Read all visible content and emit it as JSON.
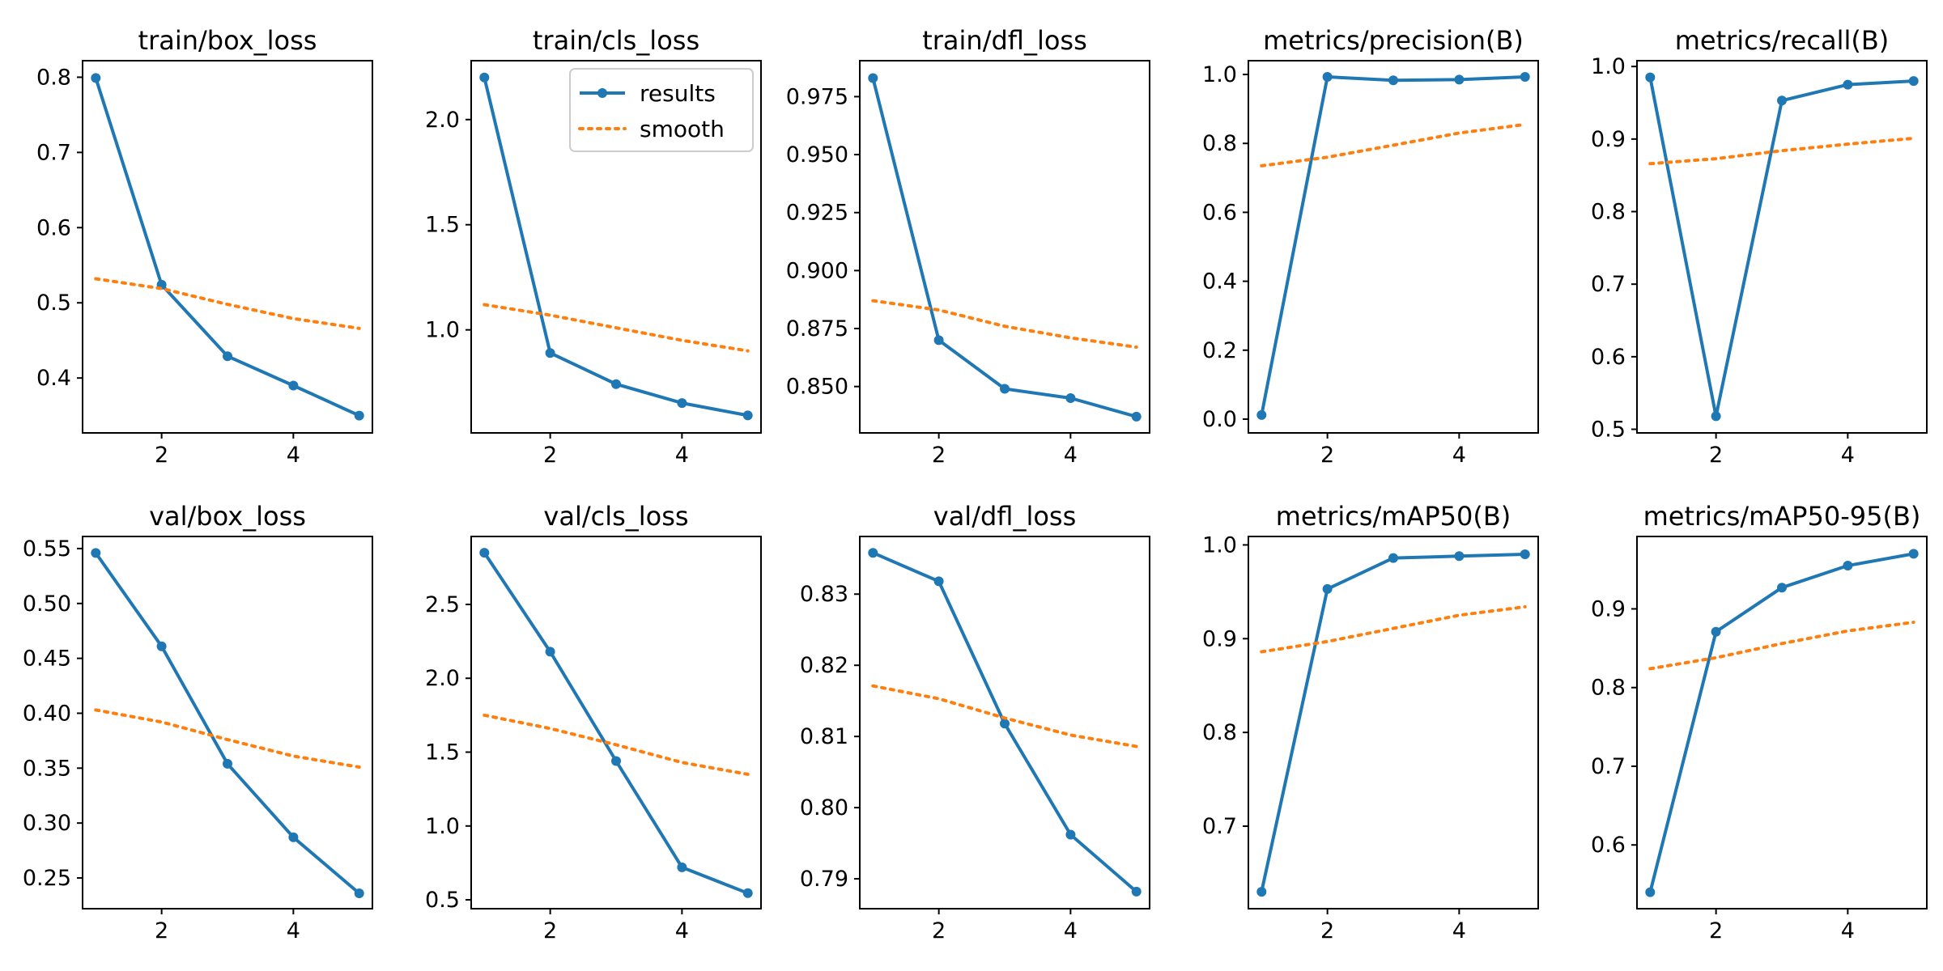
{
  "figure": {
    "background": "#ffffff",
    "colors": {
      "results": "#1f77b4",
      "smooth": "#ff7f0e"
    }
  },
  "chart_data": [
    {
      "type": "line",
      "title": "train/box_loss",
      "x": [
        1,
        2,
        3,
        4,
        5
      ],
      "xticks": [
        2,
        4
      ],
      "xlim": [
        0.8,
        5.2
      ],
      "ylim": [
        0.327,
        0.822
      ],
      "yticks": [
        0.4,
        0.5,
        0.6,
        0.7,
        0.8
      ],
      "ytick_labels": [
        "0.4",
        "0.5",
        "0.6",
        "0.7",
        "0.8"
      ],
      "series": [
        {
          "name": "results",
          "style": "solid-with-markers",
          "values": [
            0.799,
            0.524,
            0.429,
            0.39,
            0.35
          ]
        },
        {
          "name": "smooth",
          "style": "dotted",
          "values": [
            0.532,
            0.519,
            0.498,
            0.479,
            0.466
          ]
        }
      ],
      "legend": null
    },
    {
      "type": "line",
      "title": "train/cls_loss",
      "x": [
        1,
        2,
        3,
        4,
        5
      ],
      "xticks": [
        2,
        4
      ],
      "xlim": [
        0.8,
        5.2
      ],
      "ylim": [
        0.51,
        2.28
      ],
      "yticks": [
        1.0,
        1.5,
        2.0
      ],
      "ytick_labels": [
        "1.0",
        "1.5",
        "2.0"
      ],
      "series": [
        {
          "name": "results",
          "style": "solid-with-markers",
          "values": [
            2.2,
            0.89,
            0.742,
            0.652,
            0.593
          ]
        },
        {
          "name": "smooth",
          "style": "dotted",
          "values": [
            1.12,
            1.07,
            1.01,
            0.95,
            0.9
          ]
        }
      ],
      "legend": {
        "position": "upper right",
        "entries": [
          "results",
          "smooth"
        ]
      }
    },
    {
      "type": "line",
      "title": "train/dfl_loss",
      "x": [
        1,
        2,
        3,
        4,
        5
      ],
      "xticks": [
        2,
        4
      ],
      "xlim": [
        0.8,
        5.2
      ],
      "ylim": [
        0.83,
        0.9905
      ],
      "yticks": [
        0.85,
        0.875,
        0.9,
        0.925,
        0.95,
        0.975
      ],
      "ytick_labels": [
        "0.850",
        "0.875",
        "0.900",
        "0.925",
        "0.950",
        "0.975"
      ],
      "series": [
        {
          "name": "results",
          "style": "solid-with-markers",
          "values": [
            0.983,
            0.87,
            0.849,
            0.845,
            0.837
          ]
        },
        {
          "name": "smooth",
          "style": "dotted",
          "values": [
            0.887,
            0.883,
            0.876,
            0.871,
            0.867
          ]
        }
      ],
      "legend": null
    },
    {
      "type": "line",
      "title": "metrics/precision(B)",
      "x": [
        1,
        2,
        3,
        4,
        5
      ],
      "xticks": [
        2,
        4
      ],
      "xlim": [
        0.8,
        5.2
      ],
      "ylim": [
        -0.04,
        1.04
      ],
      "yticks": [
        0.0,
        0.2,
        0.4,
        0.6,
        0.8,
        1.0
      ],
      "ytick_labels": [
        "0.0",
        "0.2",
        "0.4",
        "0.6",
        "0.8",
        "1.0"
      ],
      "series": [
        {
          "name": "results",
          "style": "solid-with-markers",
          "values": [
            0.012,
            0.993,
            0.983,
            0.985,
            0.993
          ]
        },
        {
          "name": "smooth",
          "style": "dotted",
          "values": [
            0.735,
            0.76,
            0.795,
            0.83,
            0.855
          ]
        }
      ],
      "legend": null
    },
    {
      "type": "line",
      "title": "metrics/recall(B)",
      "x": [
        1,
        2,
        3,
        4,
        5
      ],
      "xticks": [
        2,
        4
      ],
      "xlim": [
        0.8,
        5.2
      ],
      "ylim": [
        0.495,
        1.008
      ],
      "yticks": [
        0.5,
        0.6,
        0.7,
        0.8,
        0.9,
        1.0
      ],
      "ytick_labels": [
        "0.5",
        "0.6",
        "0.7",
        "0.8",
        "0.9",
        "1.0"
      ],
      "series": [
        {
          "name": "results",
          "style": "solid-with-markers",
          "values": [
            0.985,
            0.518,
            0.953,
            0.975,
            0.98
          ]
        },
        {
          "name": "smooth",
          "style": "dotted",
          "values": [
            0.866,
            0.873,
            0.884,
            0.893,
            0.901
          ]
        }
      ],
      "legend": null
    },
    {
      "type": "line",
      "title": "val/box_loss",
      "x": [
        1,
        2,
        3,
        4,
        5
      ],
      "xticks": [
        2,
        4
      ],
      "xlim": [
        0.8,
        5.2
      ],
      "ylim": [
        0.222,
        0.561
      ],
      "yticks": [
        0.25,
        0.3,
        0.35,
        0.4,
        0.45,
        0.5,
        0.55
      ],
      "ytick_labels": [
        "0.25",
        "0.30",
        "0.35",
        "0.40",
        "0.45",
        "0.50",
        "0.55"
      ],
      "series": [
        {
          "name": "results",
          "style": "solid-with-markers",
          "values": [
            0.546,
            0.461,
            0.354,
            0.287,
            0.236
          ]
        },
        {
          "name": "smooth",
          "style": "dotted",
          "values": [
            0.403,
            0.392,
            0.376,
            0.361,
            0.351
          ]
        }
      ],
      "legend": null
    },
    {
      "type": "line",
      "title": "val/cls_loss",
      "x": [
        1,
        2,
        3,
        4,
        5
      ],
      "xticks": [
        2,
        4
      ],
      "xlim": [
        0.8,
        5.2
      ],
      "ylim": [
        0.44,
        2.96
      ],
      "yticks": [
        0.5,
        1.0,
        1.5,
        2.0,
        2.5
      ],
      "ytick_labels": [
        "0.5",
        "1.0",
        "1.5",
        "2.0",
        "2.5"
      ],
      "series": [
        {
          "name": "results",
          "style": "solid-with-markers",
          "values": [
            2.85,
            2.18,
            1.44,
            0.72,
            0.545
          ]
        },
        {
          "name": "smooth",
          "style": "dotted",
          "values": [
            1.75,
            1.66,
            1.55,
            1.43,
            1.35
          ]
        }
      ],
      "legend": null
    },
    {
      "type": "line",
      "title": "val/dfl_loss",
      "x": [
        1,
        2,
        3,
        4,
        5
      ],
      "xticks": [
        2,
        4
      ],
      "xlim": [
        0.8,
        5.2
      ],
      "ylim": [
        0.7858,
        0.8381
      ],
      "yticks": [
        0.79,
        0.8,
        0.81,
        0.82,
        0.83
      ],
      "ytick_labels": [
        "0.79",
        "0.80",
        "0.81",
        "0.82",
        "0.83"
      ],
      "series": [
        {
          "name": "results",
          "style": "solid-with-markers",
          "values": [
            0.8358,
            0.8318,
            0.8118,
            0.7962,
            0.7882
          ]
        },
        {
          "name": "smooth",
          "style": "dotted",
          "values": [
            0.8171,
            0.8153,
            0.8126,
            0.8102,
            0.8086
          ]
        }
      ],
      "legend": null
    },
    {
      "type": "line",
      "title": "metrics/mAP50(B)",
      "x": [
        1,
        2,
        3,
        4,
        5
      ],
      "xticks": [
        2,
        4
      ],
      "xlim": [
        0.8,
        5.2
      ],
      "ylim": [
        0.612,
        1.009
      ],
      "yticks": [
        0.7,
        0.8,
        0.9,
        1.0
      ],
      "ytick_labels": [
        "0.7",
        "0.8",
        "0.9",
        "1.0"
      ],
      "series": [
        {
          "name": "results",
          "style": "solid-with-markers",
          "values": [
            0.63,
            0.953,
            0.986,
            0.988,
            0.99
          ]
        },
        {
          "name": "smooth",
          "style": "dotted",
          "values": [
            0.886,
            0.897,
            0.911,
            0.925,
            0.934
          ]
        }
      ],
      "legend": null
    },
    {
      "type": "line",
      "title": "metrics/mAP50-95(B)",
      "x": [
        1,
        2,
        3,
        4,
        5
      ],
      "xticks": [
        2,
        4
      ],
      "xlim": [
        0.8,
        5.2
      ],
      "ylim": [
        0.519,
        0.992
      ],
      "yticks": [
        0.6,
        0.7,
        0.8,
        0.9
      ],
      "ytick_labels": [
        "0.6",
        "0.7",
        "0.8",
        "0.9"
      ],
      "series": [
        {
          "name": "results",
          "style": "solid-with-markers",
          "values": [
            0.54,
            0.871,
            0.927,
            0.955,
            0.97
          ]
        },
        {
          "name": "smooth",
          "style": "dotted",
          "values": [
            0.824,
            0.838,
            0.856,
            0.872,
            0.883
          ]
        }
      ],
      "legend": null
    }
  ]
}
